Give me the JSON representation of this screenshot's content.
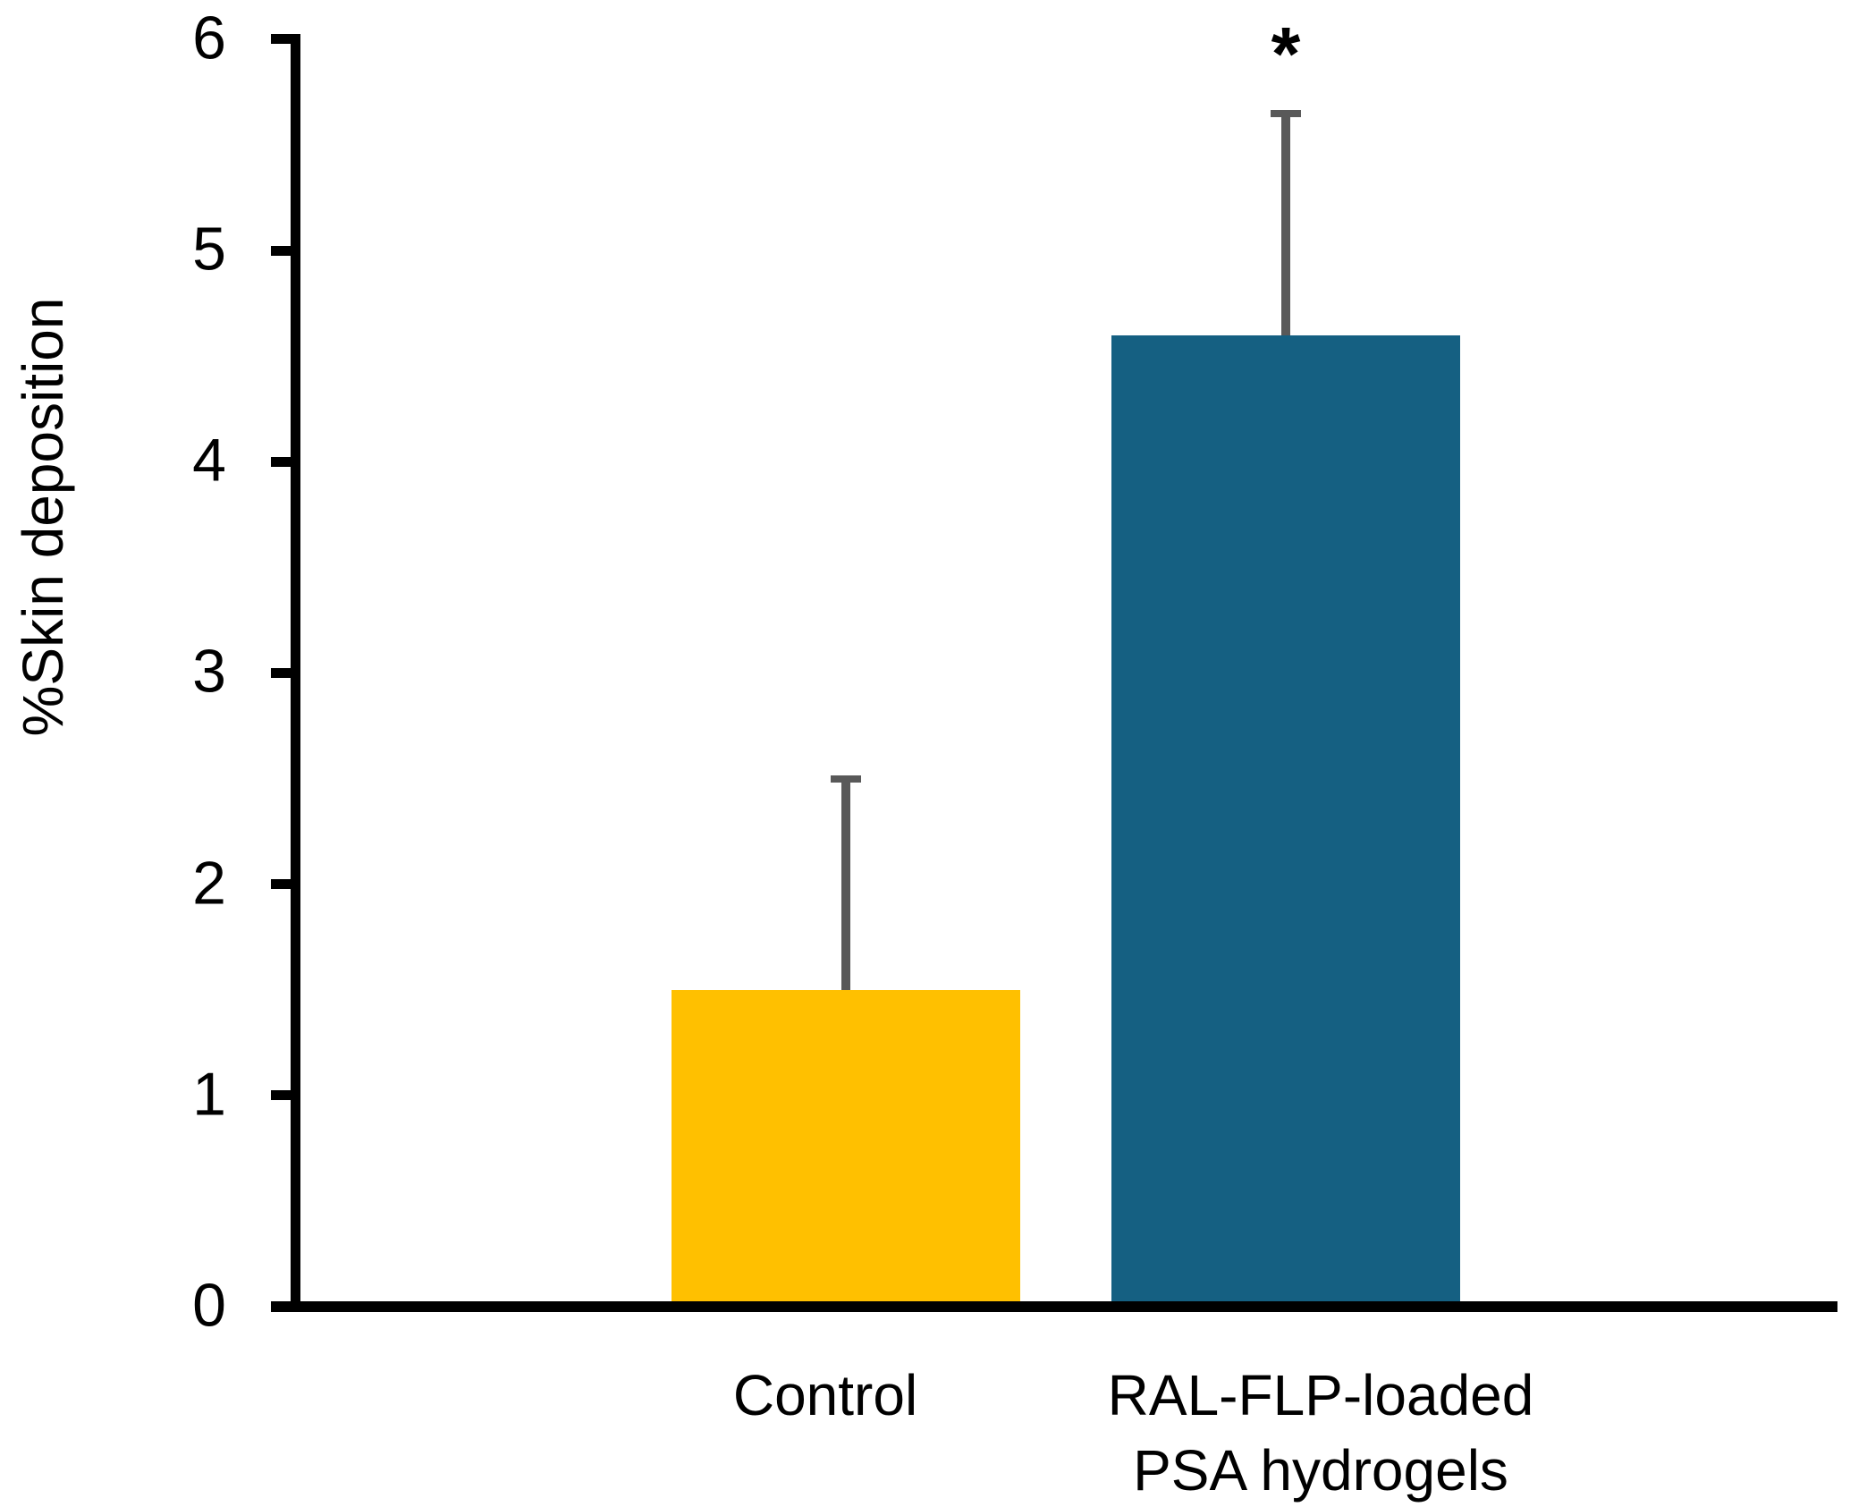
{
  "figure": {
    "background_color": "#FFFFFF",
    "axis_color": "#000000",
    "error_bar_color": "#595959",
    "text_color": "#000000"
  },
  "chart_data": {
    "type": "bar",
    "title": "",
    "xlabel": "",
    "ylabel": "%Skin deposition",
    "categories": [
      "Control",
      "RAL-FLP-loaded\nPSA hydrogels"
    ],
    "values": [
      1.5,
      4.6
    ],
    "errors_upper": [
      1.0,
      1.05
    ],
    "bar_colors": [
      "#FFC000",
      "#156082"
    ],
    "ylim": [
      0,
      6
    ],
    "yticks": [
      "0",
      "1",
      "2",
      "3",
      "4",
      "5",
      "6"
    ],
    "grid": false,
    "legend": false,
    "annotations": [
      {
        "category_index": 1,
        "text": "*"
      }
    ]
  }
}
